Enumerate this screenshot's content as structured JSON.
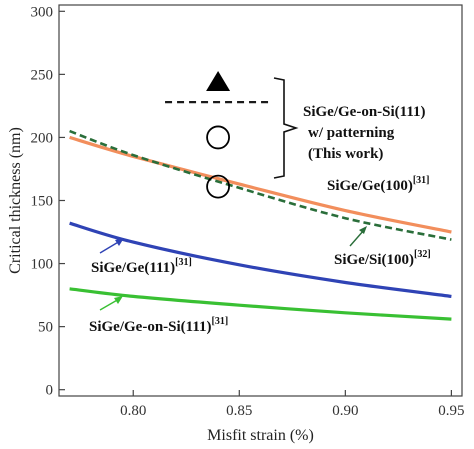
{
  "chart_data": {
    "type": "line",
    "title": "",
    "xlabel": "Misfit strain (%)",
    "ylabel": "Critical thickness (nm)",
    "xlim": [
      0.765,
      0.955
    ],
    "ylim": [
      -5,
      305
    ],
    "x_ticks": [
      0.8,
      0.85,
      0.9,
      0.95
    ],
    "x_tick_labels": [
      "0.80",
      "0.85",
      "0.90",
      "0.95"
    ],
    "y_ticks": [
      0,
      50,
      100,
      150,
      200,
      250,
      300
    ],
    "y_tick_labels": [
      "0",
      "50",
      "100",
      "150",
      "200",
      "250",
      "300"
    ],
    "grid": false,
    "series": [
      {
        "color": "#f28e5c",
        "style": "solid",
        "x": [
          0.77,
          0.8,
          0.85,
          0.9,
          0.95
        ],
        "y": [
          200,
          185,
          163,
          142,
          125
        ]
      },
      {
        "color": "#2a6e3a",
        "style": "dashed",
        "x": [
          0.77,
          0.8,
          0.85,
          0.9,
          0.95
        ],
        "y": [
          205,
          186,
          160,
          136,
          119
        ]
      },
      {
        "color": "#2f43b5",
        "style": "solid",
        "x": [
          0.77,
          0.8,
          0.85,
          0.9,
          0.95
        ],
        "y": [
          132,
          117,
          99,
          85,
          74
        ]
      },
      {
        "color": "#39c033",
        "style": "solid",
        "x": [
          0.77,
          0.8,
          0.85,
          0.9,
          0.95
        ],
        "y": [
          80,
          74,
          67,
          61,
          56
        ]
      }
    ],
    "markers": [
      {
        "shape": "triangle-filled",
        "x": 0.84,
        "y": 244
      },
      {
        "shape": "circle-open",
        "x": 0.84,
        "y": 200
      },
      {
        "shape": "circle-open",
        "x": 0.84,
        "y": 161
      }
    ],
    "legend_key": {
      "style": "dashed",
      "color": "#1a1a1a",
      "x": [
        0.815,
        0.865
      ],
      "y": 228
    },
    "annotations": [
      {
        "lines": [
          {
            "text": "SiGe/Ge-on-Si(111)"
          },
          {
            "text": "w/ patterning"
          },
          {
            "text": "(This work)"
          }
        ]
      },
      {
        "text": "SiGe/Ge(100)",
        "ref": "[31]"
      },
      {
        "text": "SiGe/Si(100)",
        "ref": "[32]"
      },
      {
        "text": "SiGe/Ge(111)",
        "ref": "[31]"
      },
      {
        "text": "SiGe/Ge-on-Si(111)",
        "ref": "[31]"
      }
    ]
  }
}
